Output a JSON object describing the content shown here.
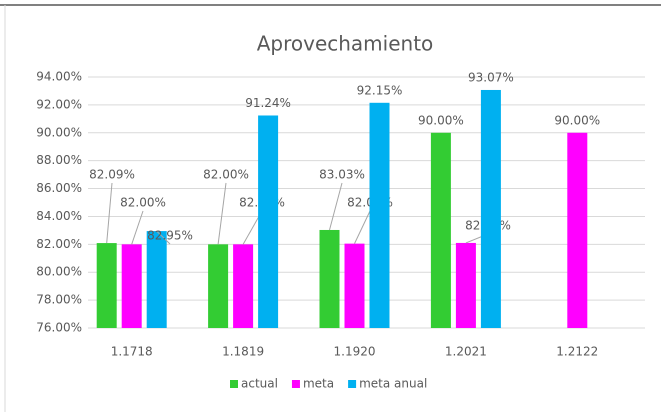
{
  "chart_data": {
    "type": "bar",
    "title": "Aprovechamiento",
    "categories": [
      "1.1718",
      "1.1819",
      "1.1920",
      "1.2021",
      "1.2122"
    ],
    "series": [
      {
        "name": "actual",
        "color": "#33cc33",
        "values": [
          82.09,
          82.0,
          83.03,
          90.0,
          null
        ],
        "value_labels": [
          "82.09%",
          "82.00%",
          "83.03%",
          "90.00%",
          null
        ]
      },
      {
        "name": "meta",
        "color": "#ff00ff",
        "values": [
          82.0,
          82.0,
          82.05,
          82.1,
          90.0
        ],
        "value_labels": [
          "82.00%",
          "82.00%",
          "82.05%",
          "82.10%",
          "90.00%"
        ]
      },
      {
        "name": "meta anual",
        "color": "#00b0f0",
        "values": [
          82.95,
          91.24,
          92.15,
          93.07,
          null
        ],
        "value_labels": [
          "82.95%",
          "91.24%",
          "92.15%",
          "93.07%",
          null
        ]
      }
    ],
    "ylim": [
      76,
      94
    ],
    "yticks": [
      {
        "value": 76,
        "label": "76.00%"
      },
      {
        "value": 78,
        "label": "78.00%"
      },
      {
        "value": 80,
        "label": "80.00%"
      },
      {
        "value": 82,
        "label": "82.00%"
      },
      {
        "value": 84,
        "label": "84.00%"
      },
      {
        "value": 86,
        "label": "86.00%"
      },
      {
        "value": 88,
        "label": "88.00%"
      },
      {
        "value": 90,
        "label": "90.00%"
      },
      {
        "value": 92,
        "label": "92.00%"
      },
      {
        "value": 94,
        "label": "94.00%"
      }
    ],
    "grid": true,
    "legend": "bottom"
  }
}
